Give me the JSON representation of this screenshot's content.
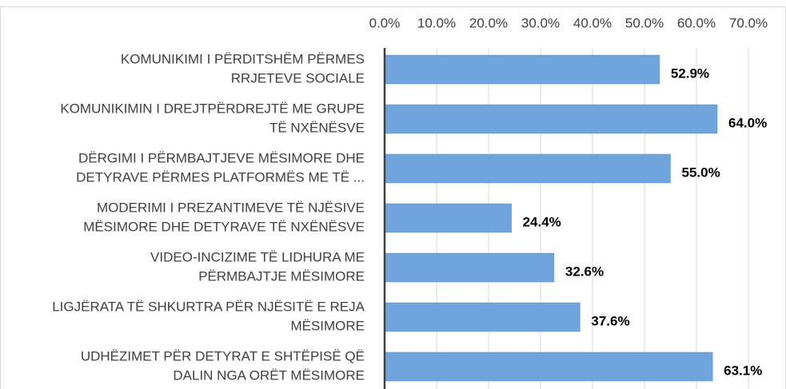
{
  "chart_data": {
    "type": "bar",
    "orientation": "horizontal",
    "categories": [
      [
        "KOMUNIKIMI I PËRDITSHËM PËRMES",
        "RRJETEVE SOCIALE"
      ],
      [
        "KOMUNIKIMIN I DREJTPËRDREJTË ME GRUPE",
        "TË NXËNËSVE"
      ],
      [
        "DËRGIMI I PËRMBAJTJEVE MËSIMORE DHE",
        "DETYRAVE PËRMES PLATFORMËS ME TË ..."
      ],
      [
        "MODERIMI I PREZANTIMEVE TË NJËSIVE",
        "MËSIMORE DHE DETYRAVE TË NXËNËSVE"
      ],
      [
        "VIDEO-INCIZIME TË LIDHURA ME",
        "PËRMBAJTJE MËSIMORE"
      ],
      [
        "LIGJËRATA TË SHKURTRA PËR NJËSITË E REJA",
        "MËSIMORE"
      ],
      [
        "UDHËZIMET PËR DETYRAT E SHTËPISË QË",
        "DALIN NGA ORËT MËSIMORE"
      ]
    ],
    "values": [
      52.9,
      64.0,
      55.0,
      24.4,
      32.6,
      37.6,
      63.1
    ],
    "value_labels": [
      "52.9%",
      "64.0%",
      "55.0%",
      "24.4%",
      "32.6%",
      "37.6%",
      "63.1%"
    ],
    "color": "#6fa4dc",
    "xlim": [
      0,
      70
    ],
    "xticks": [
      {
        "value": 0,
        "label": "0.0%"
      },
      {
        "value": 10,
        "label": "10.0%"
      },
      {
        "value": 20,
        "label": "20.0%"
      },
      {
        "value": 30,
        "label": "30.0%"
      },
      {
        "value": 40,
        "label": "40.0%"
      },
      {
        "value": 50,
        "label": "50.0%"
      },
      {
        "value": 60,
        "label": "60.0%"
      },
      {
        "value": 70,
        "label": "70.0%"
      }
    ],
    "grid": true
  }
}
